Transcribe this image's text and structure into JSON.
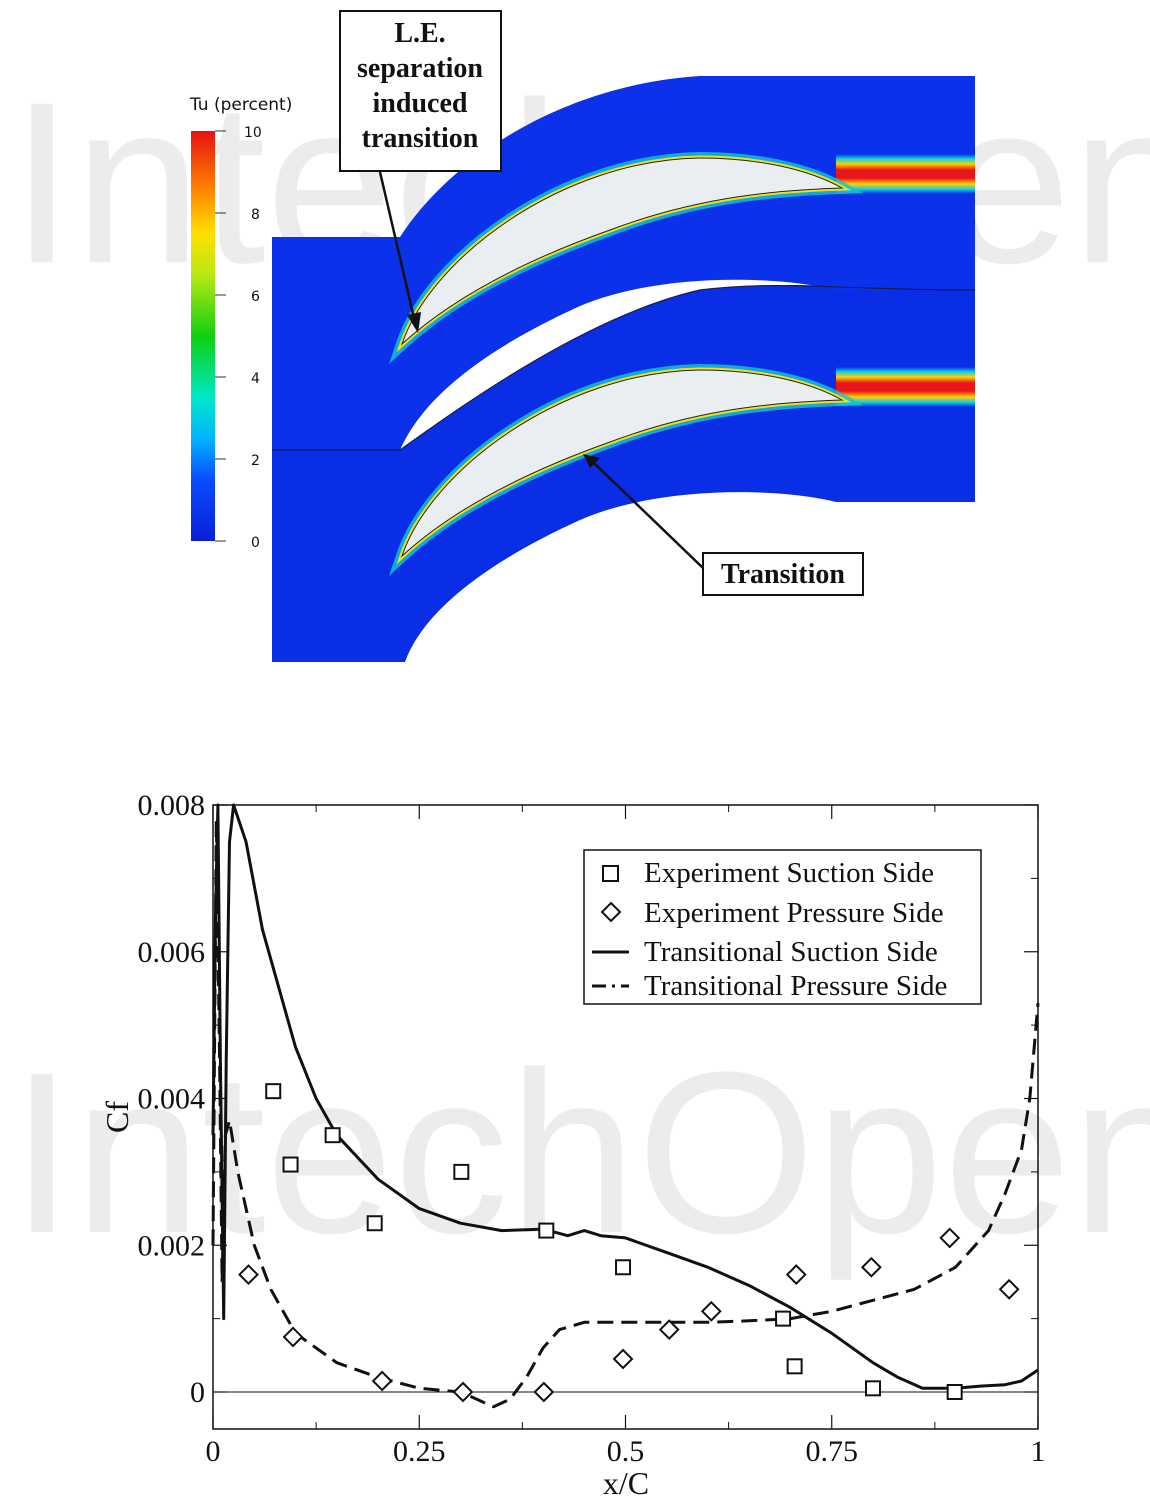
{
  "contour_figure": {
    "colorbar": {
      "title": "Tu (percent)",
      "ticks": [
        "10",
        "8",
        "6",
        "4",
        "2",
        "0"
      ],
      "range": [
        0,
        10
      ]
    },
    "annotations": {
      "le_callout": [
        "L.E.",
        "separation",
        "induced",
        "transition"
      ],
      "transition_callout": "Transition"
    },
    "watermark": "IntechOpen",
    "colors": {
      "background_flow": "#0a2ee6",
      "blade": "#e8eef2",
      "wake_hot": "#e8151a"
    }
  },
  "chart_data": {
    "type": "line",
    "title": "",
    "xlabel": "x/C",
    "ylabel": "Cf",
    "xlim": [
      0,
      1
    ],
    "ylim": [
      -0.0005,
      0.008
    ],
    "x_ticks": [
      0,
      0.25,
      0.5,
      0.75,
      1
    ],
    "x_tick_labels": [
      "0",
      "0.25",
      "0.5",
      "0.75",
      "1"
    ],
    "y_ticks": [
      0,
      0.002,
      0.004,
      0.006,
      0.008
    ],
    "y_tick_labels": [
      "0",
      "0.002",
      "0.004",
      "0.006",
      "0.008"
    ],
    "zero_line": true,
    "legend_position": "top-right",
    "legend": [
      "Experiment Suction Side",
      "Experiment Pressure Side",
      "Transitional Suction Side",
      "Transitional Pressure Side"
    ],
    "series": [
      {
        "name": "Experiment Suction Side",
        "marker": "square",
        "points": [
          [
            0.073,
            0.0041
          ],
          [
            0.094,
            0.0031
          ],
          [
            0.145,
            0.0035
          ],
          [
            0.196,
            0.0023
          ],
          [
            0.301,
            0.003
          ],
          [
            0.404,
            0.0022
          ],
          [
            0.497,
            0.0017
          ],
          [
            0.691,
            0.001
          ],
          [
            0.705,
            0.00035
          ],
          [
            0.8,
            5e-05
          ],
          [
            0.899,
            0.0
          ]
        ]
      },
      {
        "name": "Experiment Pressure Side",
        "marker": "diamond",
        "points": [
          [
            0.043,
            0.0016
          ],
          [
            0.097,
            0.00075
          ],
          [
            0.205,
            0.00015
          ],
          [
            0.303,
            0.0
          ],
          [
            0.401,
            0.0
          ],
          [
            0.497,
            0.00045
          ],
          [
            0.553,
            0.00085
          ],
          [
            0.604,
            0.0011
          ],
          [
            0.707,
            0.0016
          ],
          [
            0.798,
            0.0017
          ],
          [
            0.893,
            0.0021
          ],
          [
            0.965,
            0.0014
          ]
        ]
      },
      {
        "name": "Transitional Suction Side",
        "style": "solid",
        "points": [
          [
            0.0,
            0.0035
          ],
          [
            0.003,
            0.0065
          ],
          [
            0.006,
            0.008
          ],
          [
            0.009,
            0.0045
          ],
          [
            0.013,
            0.001
          ],
          [
            0.016,
            0.0045
          ],
          [
            0.02,
            0.0075
          ],
          [
            0.025,
            0.008
          ],
          [
            0.04,
            0.0075
          ],
          [
            0.06,
            0.0063
          ],
          [
            0.08,
            0.0055
          ],
          [
            0.1,
            0.0047
          ],
          [
            0.125,
            0.004
          ],
          [
            0.15,
            0.0035
          ],
          [
            0.2,
            0.0029
          ],
          [
            0.25,
            0.0025
          ],
          [
            0.3,
            0.0023
          ],
          [
            0.35,
            0.0022
          ],
          [
            0.4,
            0.00222
          ],
          [
            0.43,
            0.00213
          ],
          [
            0.45,
            0.0022
          ],
          [
            0.47,
            0.00213
          ],
          [
            0.5,
            0.0021
          ],
          [
            0.55,
            0.0019
          ],
          [
            0.6,
            0.0017
          ],
          [
            0.65,
            0.00145
          ],
          [
            0.7,
            0.00115
          ],
          [
            0.75,
            0.0008
          ],
          [
            0.8,
            0.0004
          ],
          [
            0.83,
            0.0002
          ],
          [
            0.86,
            5e-05
          ],
          [
            0.9,
            5e-05
          ],
          [
            0.93,
            8e-05
          ],
          [
            0.96,
            0.0001
          ],
          [
            0.98,
            0.00015
          ],
          [
            1.0,
            0.0003
          ]
        ]
      },
      {
        "name": "Transitional Pressure Side",
        "style": "dashed",
        "points": [
          [
            0.0,
            0.002
          ],
          [
            0.004,
            0.0078
          ],
          [
            0.008,
            0.0045
          ],
          [
            0.011,
            0.0015
          ],
          [
            0.015,
            0.0035
          ],
          [
            0.02,
            0.0037
          ],
          [
            0.03,
            0.003
          ],
          [
            0.05,
            0.002
          ],
          [
            0.07,
            0.0014
          ],
          [
            0.1,
            0.0008
          ],
          [
            0.15,
            0.0004
          ],
          [
            0.2,
            0.0002
          ],
          [
            0.25,
            5e-05
          ],
          [
            0.3,
            0.0
          ],
          [
            0.34,
            -0.0002
          ],
          [
            0.36,
            -0.0001
          ],
          [
            0.38,
            0.0002
          ],
          [
            0.4,
            0.0006
          ],
          [
            0.42,
            0.00085
          ],
          [
            0.45,
            0.00095
          ],
          [
            0.5,
            0.00095
          ],
          [
            0.55,
            0.00095
          ],
          [
            0.6,
            0.00095
          ],
          [
            0.65,
            0.00097
          ],
          [
            0.7,
            0.001
          ],
          [
            0.75,
            0.0011
          ],
          [
            0.8,
            0.00125
          ],
          [
            0.85,
            0.0014
          ],
          [
            0.9,
            0.0017
          ],
          [
            0.94,
            0.0022
          ],
          [
            0.96,
            0.0027
          ],
          [
            0.98,
            0.0033
          ],
          [
            0.99,
            0.004
          ],
          [
            1.0,
            0.0053
          ]
        ]
      }
    ]
  }
}
